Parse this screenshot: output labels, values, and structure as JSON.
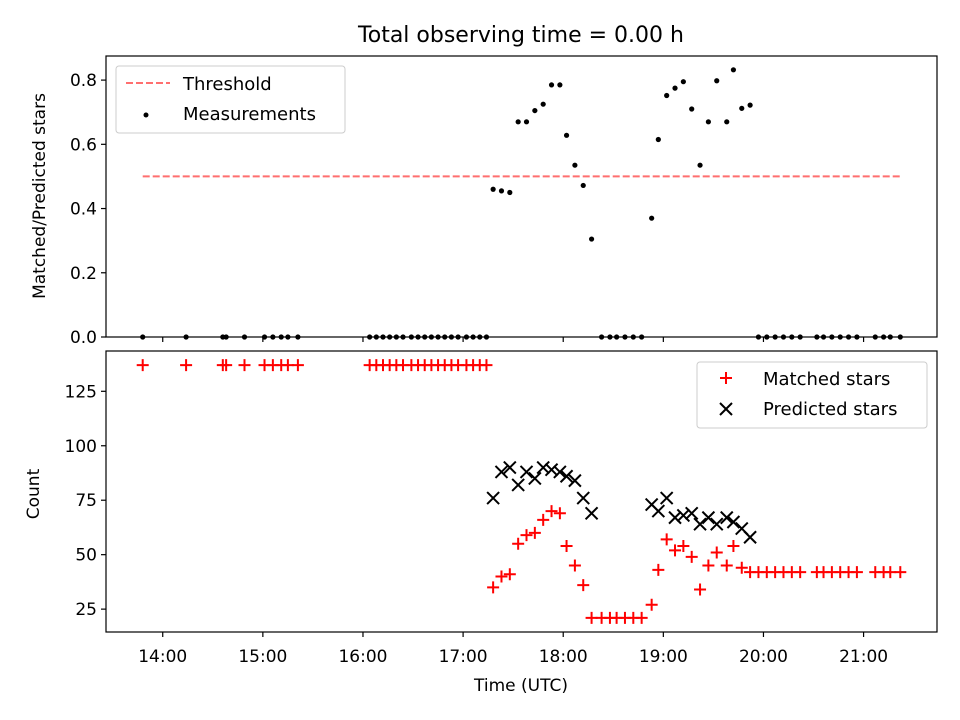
{
  "chart_data": [
    {
      "type": "scatter",
      "title": "Total observing time = 0.00 h",
      "xlabel": "",
      "ylabel": "Matched/Predicted stars",
      "xlim": [
        "13:26",
        "21:44"
      ],
      "ylim": [
        0,
        0.875
      ],
      "x_ticks": [
        "14:00",
        "15:00",
        "16:00",
        "17:00",
        "18:00",
        "19:00",
        "20:00",
        "21:00"
      ],
      "y_ticks": [
        "0.0",
        "0.2",
        "0.4",
        "0.6",
        "0.8"
      ],
      "grid": false,
      "legend_position": "upper left",
      "series": [
        {
          "name": "Threshold",
          "style": "dashed-line",
          "color": "#ff6f6f",
          "points": [
            [
              "13:48",
              0.5
            ],
            [
              "21:22",
              0.5
            ]
          ]
        },
        {
          "name": "Measurements",
          "style": "dot",
          "color": "#000000",
          "points": [
            [
              "13:48",
              0
            ],
            [
              "14:14",
              0
            ],
            [
              "14:36",
              0
            ],
            [
              "14:38",
              0
            ],
            [
              "14:49",
              0
            ],
            [
              "15:01",
              0
            ],
            [
              "15:06",
              0
            ],
            [
              "15:11",
              0
            ],
            [
              "15:15",
              0
            ],
            [
              "15:21",
              0
            ],
            [
              "16:04",
              0
            ],
            [
              "16:08",
              0
            ],
            [
              "16:12",
              0
            ],
            [
              "16:16",
              0
            ],
            [
              "16:20",
              0
            ],
            [
              "16:24",
              0
            ],
            [
              "16:29",
              0
            ],
            [
              "16:33",
              0
            ],
            [
              "16:37",
              0
            ],
            [
              "16:41",
              0
            ],
            [
              "16:45",
              0
            ],
            [
              "16:49",
              0
            ],
            [
              "16:53",
              0
            ],
            [
              "16:57",
              0
            ],
            [
              "17:02",
              0
            ],
            [
              "17:06",
              0
            ],
            [
              "17:10",
              0
            ],
            [
              "17:14",
              0
            ],
            [
              "17:18",
              0.46
            ],
            [
              "17:23",
              0.455
            ],
            [
              "17:28",
              0.45
            ],
            [
              "17:33",
              0.67
            ],
            [
              "17:38",
              0.67
            ],
            [
              "17:43",
              0.705
            ],
            [
              "17:48",
              0.725
            ],
            [
              "17:53",
              0.785
            ],
            [
              "17:58",
              0.785
            ],
            [
              "18:02",
              0.628
            ],
            [
              "18:07",
              0.535
            ],
            [
              "18:12",
              0.472
            ],
            [
              "18:17",
              0.305
            ],
            [
              "18:23",
              0
            ],
            [
              "18:28",
              0
            ],
            [
              "18:32",
              0
            ],
            [
              "18:37",
              0
            ],
            [
              "18:42",
              0
            ],
            [
              "18:47",
              0
            ],
            [
              "18:53",
              0.37
            ],
            [
              "18:57",
              0.615
            ],
            [
              "19:02",
              0.752
            ],
            [
              "19:07",
              0.775
            ],
            [
              "19:12",
              0.795
            ],
            [
              "19:17",
              0.71
            ],
            [
              "19:22",
              0.535
            ],
            [
              "19:27",
              0.67
            ],
            [
              "19:32",
              0.798
            ],
            [
              "19:38",
              0.67
            ],
            [
              "19:42",
              0.832
            ],
            [
              "19:47",
              0.712
            ],
            [
              "19:52",
              0.722
            ],
            [
              "19:57",
              0
            ],
            [
              "20:02",
              0
            ],
            [
              "20:07",
              0
            ],
            [
              "20:12",
              0
            ],
            [
              "20:17",
              0
            ],
            [
              "20:22",
              0
            ],
            [
              "20:32",
              0
            ],
            [
              "20:36",
              0
            ],
            [
              "20:41",
              0
            ],
            [
              "20:46",
              0
            ],
            [
              "20:51",
              0
            ],
            [
              "20:56",
              0
            ],
            [
              "21:07",
              0
            ],
            [
              "21:12",
              0
            ],
            [
              "21:16",
              0
            ],
            [
              "21:22",
              0
            ]
          ]
        }
      ]
    },
    {
      "type": "scatter",
      "title": "",
      "xlabel": "Time (UTC)",
      "ylabel": "Count",
      "xlim": [
        "13:26",
        "21:44"
      ],
      "ylim": [
        14.5,
        143.5
      ],
      "x_ticks": [
        "14:00",
        "15:00",
        "16:00",
        "17:00",
        "18:00",
        "19:00",
        "20:00",
        "21:00"
      ],
      "y_ticks": [
        "25",
        "50",
        "75",
        "100",
        "125"
      ],
      "grid": false,
      "legend_position": "upper right",
      "series": [
        {
          "name": "Matched stars",
          "style": "plus",
          "color": "#ff0000",
          "points": [
            [
              "13:48",
              137
            ],
            [
              "14:14",
              137
            ],
            [
              "14:36",
              137
            ],
            [
              "14:38",
              137
            ],
            [
              "14:49",
              137
            ],
            [
              "15:01",
              137
            ],
            [
              "15:06",
              137
            ],
            [
              "15:11",
              137
            ],
            [
              "15:15",
              137
            ],
            [
              "15:21",
              137
            ],
            [
              "16:04",
              137
            ],
            [
              "16:08",
              137
            ],
            [
              "16:12",
              137
            ],
            [
              "16:16",
              137
            ],
            [
              "16:20",
              137
            ],
            [
              "16:24",
              137
            ],
            [
              "16:29",
              137
            ],
            [
              "16:33",
              137
            ],
            [
              "16:37",
              137
            ],
            [
              "16:41",
              137
            ],
            [
              "16:45",
              137
            ],
            [
              "16:49",
              137
            ],
            [
              "16:53",
              137
            ],
            [
              "16:57",
              137
            ],
            [
              "17:02",
              137
            ],
            [
              "17:06",
              137
            ],
            [
              "17:10",
              137
            ],
            [
              "17:14",
              137
            ],
            [
              "17:18",
              35
            ],
            [
              "17:23",
              40
            ],
            [
              "17:28",
              41
            ],
            [
              "17:33",
              55
            ],
            [
              "17:38",
              59
            ],
            [
              "17:43",
              60
            ],
            [
              "17:48",
              66
            ],
            [
              "17:53",
              70
            ],
            [
              "17:58",
              69
            ],
            [
              "18:02",
              54
            ],
            [
              "18:07",
              45
            ],
            [
              "18:12",
              36
            ],
            [
              "18:17",
              21
            ],
            [
              "18:23",
              21
            ],
            [
              "18:28",
              21
            ],
            [
              "18:32",
              21
            ],
            [
              "18:37",
              21
            ],
            [
              "18:42",
              21
            ],
            [
              "18:47",
              21
            ],
            [
              "18:53",
              27
            ],
            [
              "18:57",
              43
            ],
            [
              "19:02",
              57
            ],
            [
              "19:07",
              52
            ],
            [
              "19:12",
              54
            ],
            [
              "19:17",
              49
            ],
            [
              "19:22",
              34
            ],
            [
              "19:27",
              45
            ],
            [
              "19:32",
              51
            ],
            [
              "19:38",
              45
            ],
            [
              "19:42",
              54
            ],
            [
              "19:47",
              44
            ],
            [
              "19:52",
              42
            ],
            [
              "19:57",
              42
            ],
            [
              "20:02",
              42
            ],
            [
              "20:07",
              42
            ],
            [
              "20:12",
              42
            ],
            [
              "20:17",
              42
            ],
            [
              "20:22",
              42
            ],
            [
              "20:32",
              42
            ],
            [
              "20:36",
              42
            ],
            [
              "20:41",
              42
            ],
            [
              "20:46",
              42
            ],
            [
              "20:51",
              42
            ],
            [
              "20:56",
              42
            ],
            [
              "21:07",
              42
            ],
            [
              "21:12",
              42
            ],
            [
              "21:16",
              42
            ],
            [
              "21:22",
              42
            ]
          ]
        },
        {
          "name": "Predicted stars",
          "style": "cross",
          "color": "#000000",
          "points": [
            [
              "17:18",
              76
            ],
            [
              "17:23",
              88
            ],
            [
              "17:28",
              90
            ],
            [
              "17:33",
              82
            ],
            [
              "17:38",
              88
            ],
            [
              "17:43",
              85
            ],
            [
              "17:48",
              90
            ],
            [
              "17:53",
              89
            ],
            [
              "17:58",
              88
            ],
            [
              "18:02",
              86
            ],
            [
              "18:07",
              84
            ],
            [
              "18:12",
              76
            ],
            [
              "18:17",
              69
            ],
            [
              "18:53",
              73
            ],
            [
              "18:57",
              70
            ],
            [
              "19:02",
              76
            ],
            [
              "19:07",
              67
            ],
            [
              "19:12",
              68
            ],
            [
              "19:17",
              69
            ],
            [
              "19:22",
              64
            ],
            [
              "19:27",
              67
            ],
            [
              "19:32",
              64
            ],
            [
              "19:38",
              67
            ],
            [
              "19:42",
              65
            ],
            [
              "19:47",
              62
            ],
            [
              "19:52",
              58
            ]
          ]
        }
      ]
    }
  ]
}
